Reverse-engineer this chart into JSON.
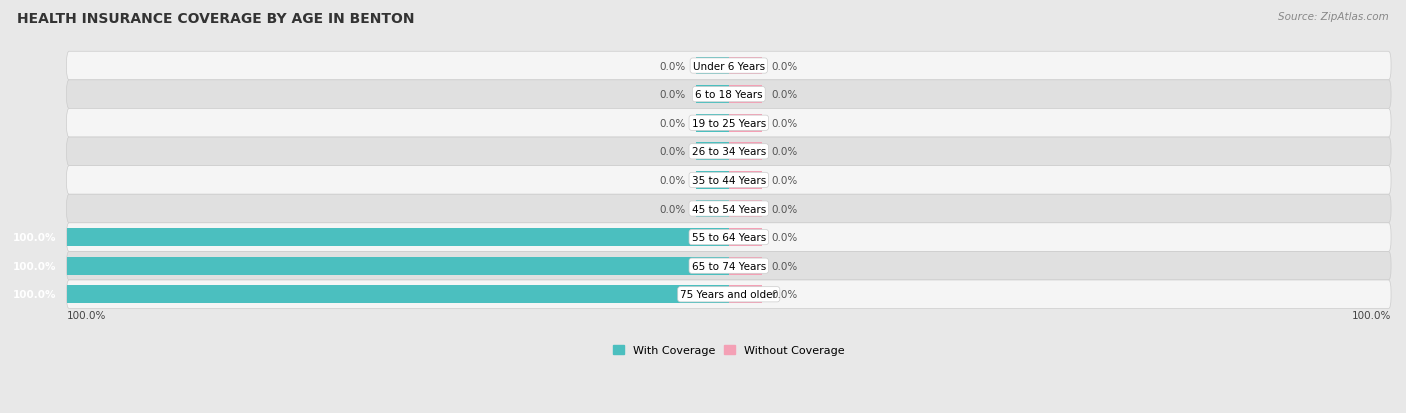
{
  "title": "HEALTH INSURANCE COVERAGE BY AGE IN BENTON",
  "source": "Source: ZipAtlas.com",
  "categories": [
    "Under 6 Years",
    "6 to 18 Years",
    "19 to 25 Years",
    "26 to 34 Years",
    "35 to 44 Years",
    "45 to 54 Years",
    "55 to 64 Years",
    "65 to 74 Years",
    "75 Years and older"
  ],
  "with_coverage": [
    0.0,
    0.0,
    0.0,
    0.0,
    0.0,
    0.0,
    100.0,
    100.0,
    100.0
  ],
  "without_coverage": [
    0.0,
    0.0,
    0.0,
    0.0,
    0.0,
    0.0,
    0.0,
    0.0,
    0.0
  ],
  "color_with": "#4BBFBF",
  "color_without": "#F4A0B5",
  "bg_color": "#e8e8e8",
  "row_bg_light": "#f5f5f5",
  "row_bg_dark": "#e0e0e0",
  "title_fontsize": 10,
  "source_fontsize": 7.5,
  "label_fontsize": 7.5,
  "bar_label_fontsize": 7.5,
  "axis_label_fontsize": 7.5,
  "legend_fontsize": 8,
  "xlim_left": -100,
  "xlim_right": 100,
  "stub_size": 5,
  "bar_height": 0.62
}
